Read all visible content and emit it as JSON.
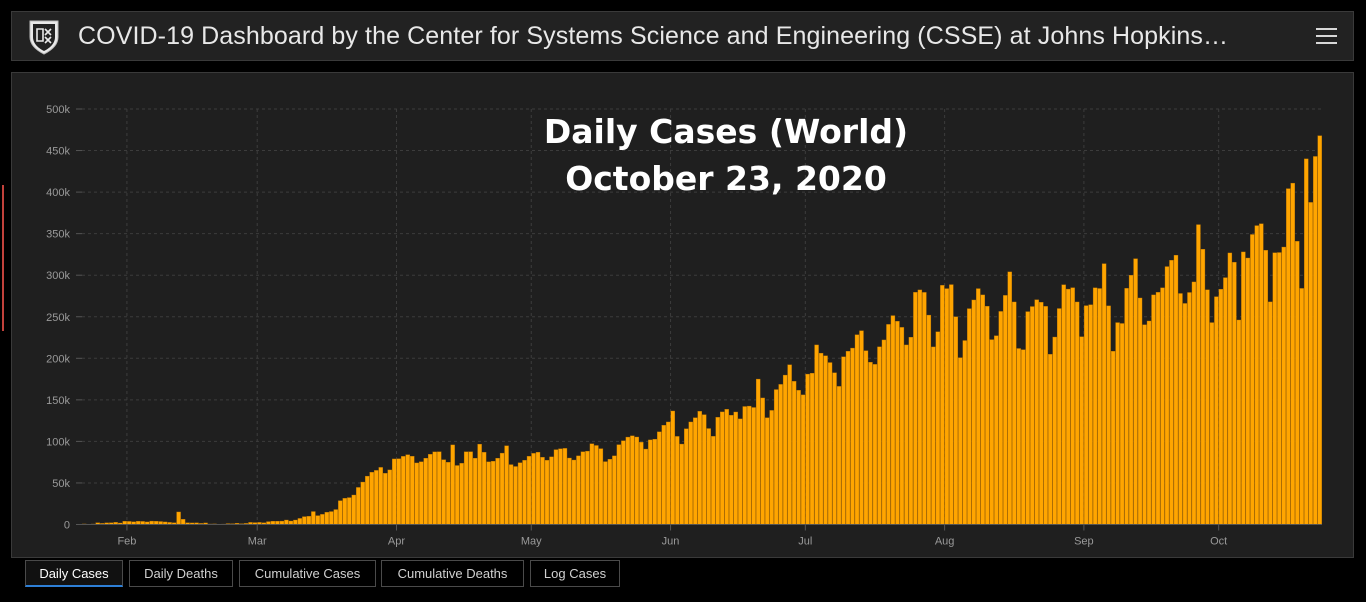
{
  "header": {
    "title": "COVID-19 Dashboard by the Center for Systems Science and Engineering (CSSE) at Johns Hopkins…",
    "menu_icon": "hamburger-menu-icon",
    "logo_icon": "university-shield-icon"
  },
  "tabs": [
    {
      "label": "Daily Cases",
      "active": true
    },
    {
      "label": "Daily Deaths",
      "active": false
    },
    {
      "label": "Cumulative Cases",
      "active": false
    },
    {
      "label": "Cumulative Deaths",
      "active": false
    },
    {
      "label": "Log Cases",
      "active": false
    }
  ],
  "colors": {
    "bar": "#FFA500",
    "background": "#1F1F1F",
    "active_tab": "#2E7FD6",
    "accent_bar": "#C2413B"
  },
  "chart_data": {
    "type": "bar",
    "title": "Daily Cases (World)",
    "subtitle": "October 23, 2020",
    "xlabel": "",
    "ylabel": "",
    "ylim": [
      0,
      500000
    ],
    "y_ticks": [
      0,
      50000,
      100000,
      150000,
      200000,
      250000,
      300000,
      350000,
      400000,
      450000,
      500000
    ],
    "y_tick_labels": [
      "0",
      "50k",
      "100k",
      "150k",
      "200k",
      "250k",
      "300k",
      "350k",
      "400k",
      "450k",
      "500k"
    ],
    "x_tick_labels": [
      "Feb",
      "Mar",
      "Apr",
      "May",
      "Jun",
      "Jul",
      "Aug",
      "Sep",
      "Oct"
    ],
    "x_tick_dates": [
      "2020-02-01",
      "2020-03-01",
      "2020-04-01",
      "2020-05-01",
      "2020-06-01",
      "2020-07-01",
      "2020-08-01",
      "2020-09-01",
      "2020-10-01"
    ],
    "grid": true,
    "x_start": "2020-01-22",
    "values": [
      650,
      150,
      600,
      2100,
      1300,
      2000,
      2100,
      2600,
      1800,
      3900,
      3700,
      3200,
      3900,
      3700,
      3100,
      4100,
      3900,
      3600,
      3100,
      2500,
      2100,
      15100,
      6300,
      2100,
      1900,
      2000,
      1300,
      1900,
      600,
      700,
      400,
      500,
      1100,
      1000,
      1500,
      1000,
      1300,
      2500,
      2300,
      2500,
      2100,
      3500,
      4000,
      4000,
      4100,
      5400,
      4200,
      5400,
      7300,
      9500,
      9900,
      15600,
      10700,
      12200,
      14700,
      15600,
      18000,
      28700,
      31500,
      32400,
      35500,
      44600,
      51100,
      58200,
      62900,
      65100,
      68700,
      61600,
      65700,
      78900,
      79200,
      82000,
      84000,
      82100,
      74100,
      75500,
      79800,
      84500,
      87400,
      87600,
      78000,
      74900,
      95800,
      71000,
      73700,
      87500,
      87600,
      79800,
      96700,
      86900,
      75400,
      76200,
      79800,
      85900,
      94700,
      72100,
      69800,
      74400,
      77300,
      82100,
      85600,
      87000,
      80900,
      77300,
      81400,
      90100,
      91100,
      91600,
      80000,
      77600,
      82600,
      87500,
      88300,
      97100,
      95100,
      91300,
      75700,
      78600,
      82600,
      96100,
      100800,
      105200,
      106700,
      105300,
      99100,
      90800,
      101800,
      102700,
      111500,
      119400,
      123400,
      136600,
      106000,
      96800,
      115200,
      123400,
      128500,
      136200,
      132200,
      115500,
      106100,
      129000,
      135500,
      138600,
      131500,
      135400,
      127100,
      142000,
      142500,
      140800,
      175000,
      152300,
      128500,
      137300,
      162400,
      168600,
      179800,
      192200,
      172300,
      161500,
      156000,
      181000,
      182100,
      216100,
      206200,
      203000,
      194900,
      182600,
      166200,
      201800,
      208500,
      212300,
      228400,
      233200,
      209200,
      195300,
      192700,
      213800,
      222100,
      240800,
      251400,
      244600,
      237200,
      216100,
      225400,
      279400,
      282300,
      279300,
      252000,
      213700,
      231900,
      287800,
      283900,
      288700,
      250000,
      200800,
      221400,
      259800,
      270200,
      283900,
      276300,
      262600,
      222500,
      227200,
      256400,
      275700,
      304000,
      267800,
      211800,
      210400,
      256200,
      262300,
      270500,
      267400,
      262500,
      204800,
      225600,
      259900,
      288500,
      283300,
      285000,
      267800,
      226000,
      263400,
      264500,
      284800,
      284000,
      313900,
      263100,
      208500,
      243000,
      241900,
      284200,
      300000,
      319900,
      272600,
      240400,
      244900,
      276300,
      279400,
      284800,
      310400,
      318000,
      324100,
      278000,
      266000,
      279200,
      291900,
      360900,
      331300,
      282400,
      243000,
      274200,
      283100,
      297100,
      326800,
      315600,
      246100,
      328000,
      320700,
      349000,
      359700,
      361900,
      330000,
      267900,
      327000,
      327300,
      333900,
      404200,
      410800,
      340800,
      284100,
      440000,
      387600,
      442900,
      467900
    ]
  }
}
